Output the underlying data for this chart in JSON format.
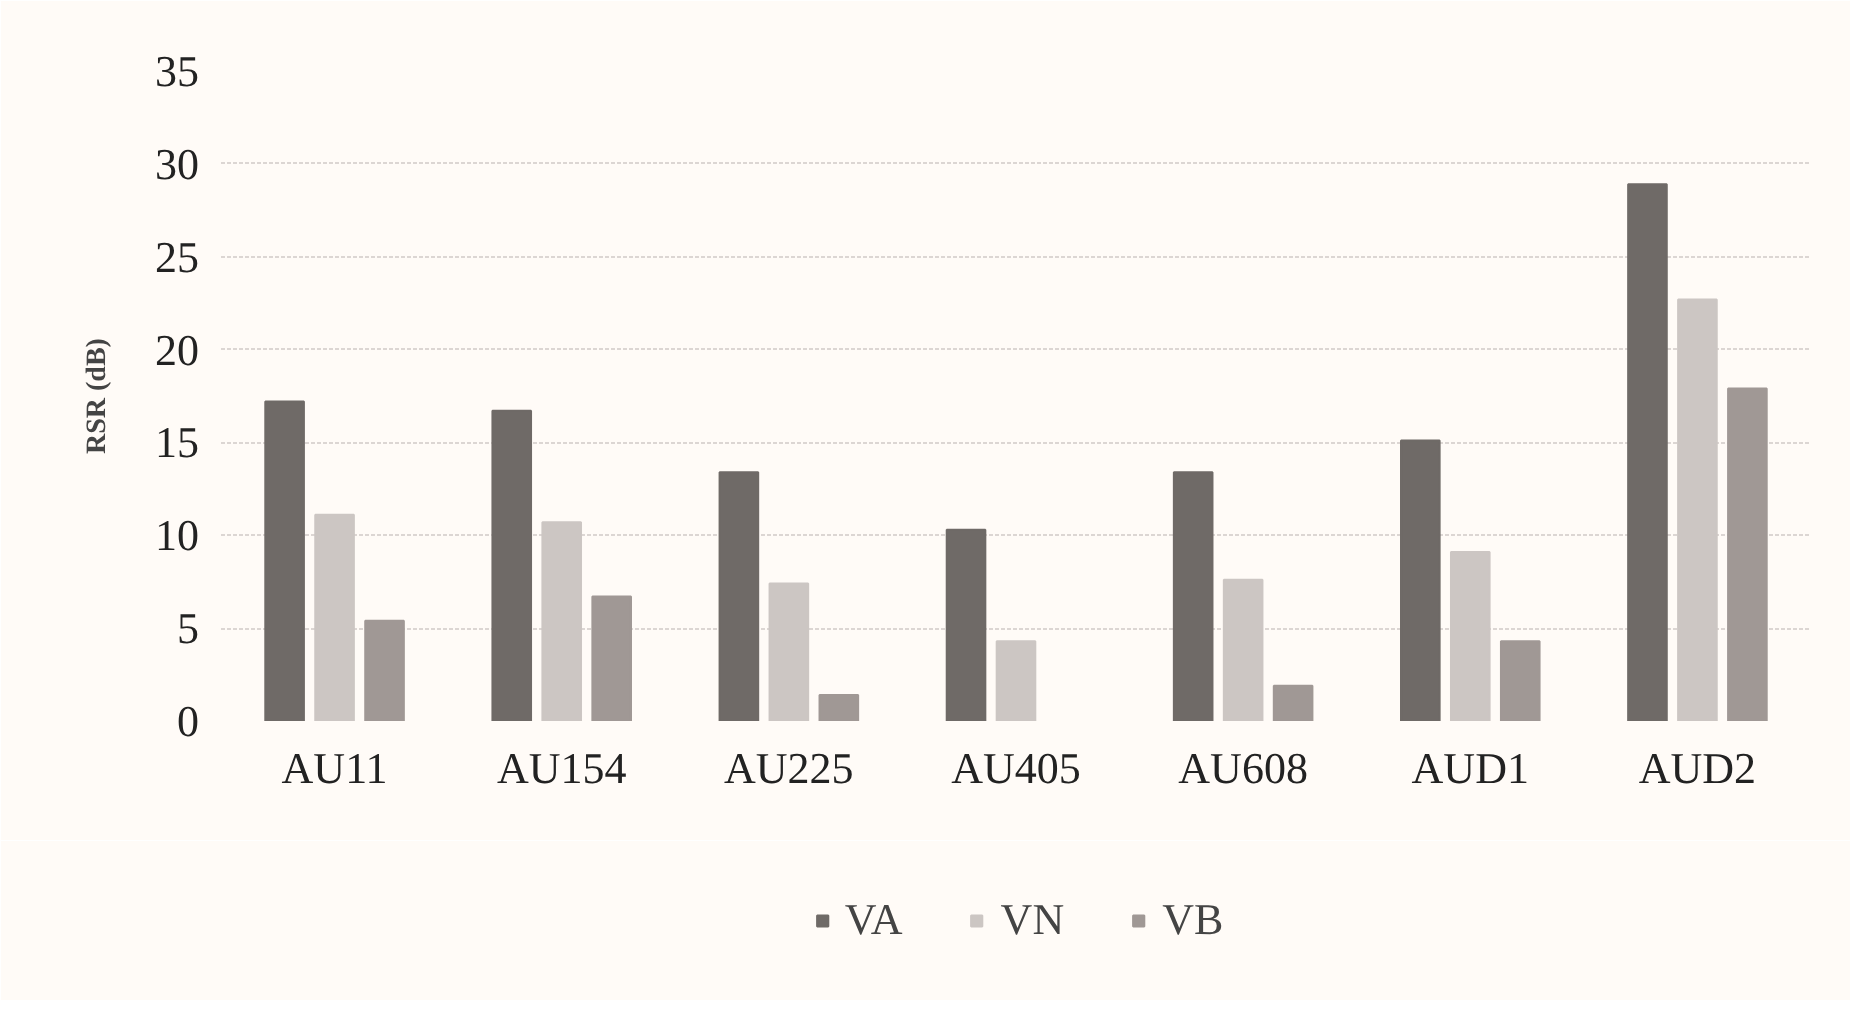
{
  "chart_data": {
    "type": "bar",
    "ylabel": "RSR (dB)",
    "categories": [
      "AU11",
      "AU154",
      "AU225",
      "AU405",
      "AU608",
      "AUD1",
      "AUD2"
    ],
    "series": [
      {
        "name": "VA",
        "color": "#6f6a67",
        "values": [
          17.2,
          16.7,
          13.4,
          10.3,
          13.4,
          15.1,
          28.9
        ]
      },
      {
        "name": "VN",
        "color": "#ccc6c3",
        "values": [
          11.1,
          10.7,
          7.4,
          4.3,
          7.6,
          9.1,
          22.7
        ]
      },
      {
        "name": "VB",
        "color": "#a09895",
        "values": [
          5.4,
          6.7,
          1.4,
          null,
          1.9,
          4.3,
          17.9
        ]
      }
    ],
    "ylim": [
      0,
      35
    ],
    "yticks": [
      0,
      5,
      10,
      15,
      20,
      25,
      30,
      35
    ],
    "grid": "y",
    "legend": "bottom"
  }
}
